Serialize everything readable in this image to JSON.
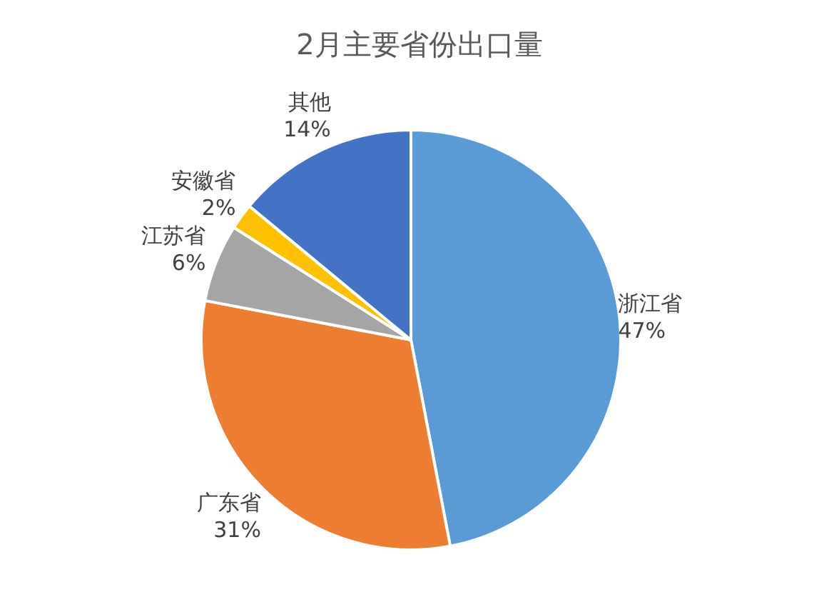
{
  "chart_data": {
    "type": "pie",
    "title": "2月主要省份出口量",
    "categories": [
      "浙江省",
      "广东省",
      "江苏省",
      "安徽省",
      "其他"
    ],
    "values": [
      47,
      31,
      6,
      2,
      14
    ],
    "value_labels": [
      "47%",
      "31%",
      "6%",
      "2%",
      "14%"
    ],
    "colors": [
      "#5b9bd5",
      "#ed7d31",
      "#a5a5a5",
      "#ffc000",
      "#4472c4"
    ]
  }
}
